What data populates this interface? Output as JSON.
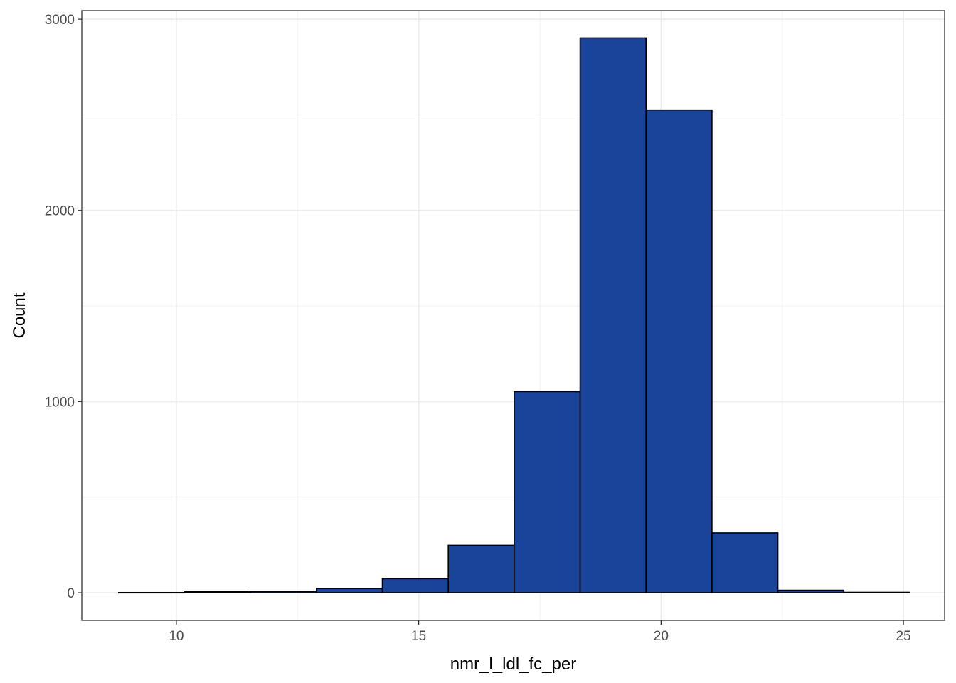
{
  "chart_data": {
    "type": "bar",
    "xlabel": "nmr_l_ldl_fc_per",
    "ylabel": "Count",
    "xlim": [
      8.05,
      25.85
    ],
    "ylim": [
      -145,
      3045
    ],
    "x_ticks": [
      10,
      15,
      20,
      25
    ],
    "x_minor_ticks": [
      12.5,
      17.5,
      22.5
    ],
    "y_ticks": [
      0,
      1000,
      2000,
      3000
    ],
    "y_minor_ticks": [
      500,
      1500,
      2500
    ],
    "bins": [
      {
        "x0": 8.81,
        "x1": 10.17,
        "count": 1
      },
      {
        "x0": 10.17,
        "x1": 11.53,
        "count": 5
      },
      {
        "x0": 11.53,
        "x1": 12.89,
        "count": 7
      },
      {
        "x0": 12.89,
        "x1": 14.25,
        "count": 22
      },
      {
        "x0": 14.25,
        "x1": 15.61,
        "count": 73
      },
      {
        "x0": 15.61,
        "x1": 16.97,
        "count": 248
      },
      {
        "x0": 16.97,
        "x1": 18.33,
        "count": 1052
      },
      {
        "x0": 18.33,
        "x1": 19.69,
        "count": 2902
      },
      {
        "x0": 19.69,
        "x1": 21.05,
        "count": 2525
      },
      {
        "x0": 21.05,
        "x1": 22.41,
        "count": 313
      },
      {
        "x0": 22.41,
        "x1": 23.77,
        "count": 13
      },
      {
        "x0": 23.77,
        "x1": 25.13,
        "count": 2
      }
    ],
    "bar_fill": "#1a4499",
    "bar_stroke": "#000000",
    "grid": true,
    "legend": "none"
  }
}
